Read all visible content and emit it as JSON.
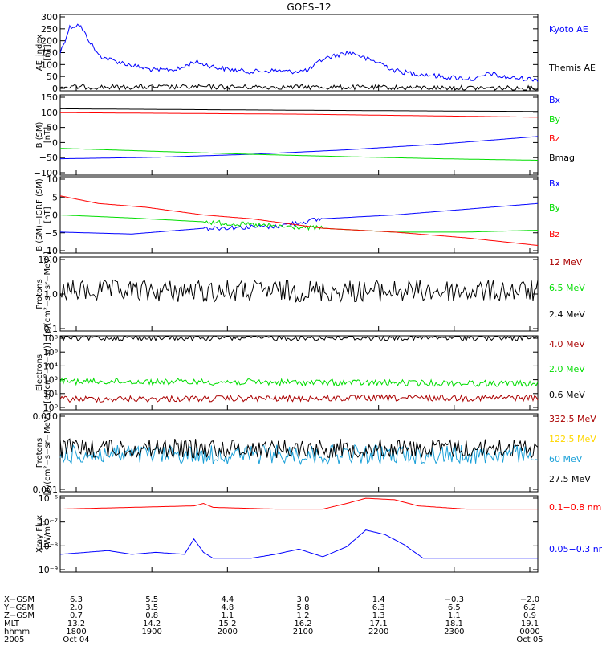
{
  "title": "GOES–12",
  "chart_data": [
    {
      "type": "line",
      "ylabel": "AE_index\n[nT]",
      "yticks": [
        "300",
        "250",
        "200",
        "150",
        "100",
        "50",
        "0"
      ],
      "ylim": [
        0,
        300
      ],
      "scale": "linear",
      "series": [
        {
          "name": "Kyoto AE",
          "color": "#0000ff",
          "points": [
            [
              0,
              150
            ],
            [
              0.02,
              250
            ],
            [
              0.04,
              260
            ],
            [
              0.06,
              200
            ],
            [
              0.08,
              140
            ],
            [
              0.1,
              125
            ],
            [
              0.13,
              110
            ],
            [
              0.16,
              95
            ],
            [
              0.2,
              80
            ],
            [
              0.25,
              85
            ],
            [
              0.28,
              115
            ],
            [
              0.3,
              105
            ],
            [
              0.33,
              90
            ],
            [
              0.37,
              80
            ],
            [
              0.4,
              75
            ],
            [
              0.45,
              80
            ],
            [
              0.48,
              75
            ],
            [
              0.52,
              80
            ],
            [
              0.55,
              125
            ],
            [
              0.58,
              140
            ],
            [
              0.6,
              150
            ],
            [
              0.62,
              145
            ],
            [
              0.64,
              125
            ],
            [
              0.67,
              110
            ],
            [
              0.7,
              80
            ],
            [
              0.73,
              70
            ],
            [
              0.76,
              65
            ],
            [
              0.8,
              55
            ],
            [
              0.84,
              50
            ],
            [
              0.87,
              45
            ],
            [
              0.9,
              70
            ],
            [
              0.92,
              55
            ],
            [
              0.95,
              50
            ],
            [
              1,
              45
            ]
          ]
        },
        {
          "name": "Themis AE",
          "color": "#000000",
          "points": [
            [
              0,
              15
            ],
            [
              0.5,
              15
            ],
            [
              1,
              10
            ]
          ]
        }
      ]
    },
    {
      "type": "line",
      "ylabel": "B (SM)\n[nT]",
      "yticks": [
        "150",
        "100",
        "50",
        "0",
        "−50",
        "−100"
      ],
      "ylim": [
        -110,
        160
      ],
      "scale": "linear",
      "series": [
        {
          "name": "Bx",
          "color": "#0000ff",
          "points": [
            [
              0,
              -55
            ],
            [
              0.2,
              -50
            ],
            [
              0.4,
              -40
            ],
            [
              0.6,
              -25
            ],
            [
              0.8,
              -5
            ],
            [
              1,
              20
            ]
          ]
        },
        {
          "name": "By",
          "color": "#00dd00",
          "points": [
            [
              0,
              -20
            ],
            [
              0.2,
              -30
            ],
            [
              0.4,
              -40
            ],
            [
              0.6,
              -48
            ],
            [
              0.8,
              -55
            ],
            [
              1,
              -60
            ]
          ]
        },
        {
          "name": "Bz",
          "color": "#ff0000",
          "points": [
            [
              0,
              100
            ],
            [
              0.5,
              95
            ],
            [
              1,
              85
            ]
          ]
        },
        {
          "name": "Bmag",
          "color": "#000000",
          "points": [
            [
              0,
              113
            ],
            [
              0.5,
              108
            ],
            [
              1,
              104
            ]
          ]
        }
      ]
    },
    {
      "type": "line",
      "ylabel": "B (SM)−IGRF (SM)\n[nT]",
      "yticks": [
        "10",
        "5",
        "0",
        "−5",
        "−10"
      ],
      "ylim": [
        -10,
        10
      ],
      "scale": "linear",
      "series": [
        {
          "name": "Bx",
          "color": "#0000ff",
          "points": [
            [
              0,
              -4.5
            ],
            [
              0.15,
              -5
            ],
            [
              0.3,
              -3.5
            ],
            [
              0.45,
              -3
            ],
            [
              0.55,
              -1
            ],
            [
              0.7,
              0
            ],
            [
              0.85,
              1.5
            ],
            [
              1,
              3
            ]
          ]
        },
        {
          "name": "By",
          "color": "#00dd00",
          "points": [
            [
              0,
              0
            ],
            [
              0.15,
              -0.8
            ],
            [
              0.3,
              -1.8
            ],
            [
              0.45,
              -3
            ],
            [
              0.55,
              -3.5
            ],
            [
              0.7,
              -4.5
            ],
            [
              0.85,
              -4.5
            ],
            [
              1,
              -4
            ]
          ]
        },
        {
          "name": "Bz",
          "color": "#ff0000",
          "points": [
            [
              0,
              5
            ],
            [
              0.08,
              3
            ],
            [
              0.18,
              2
            ],
            [
              0.3,
              0
            ],
            [
              0.4,
              -1
            ],
            [
              0.55,
              -3.5
            ],
            [
              0.7,
              -4.5
            ],
            [
              0.85,
              -6
            ],
            [
              1,
              -8
            ]
          ]
        }
      ]
    },
    {
      "type": "line",
      "ylabel": "Protons\n[p/(cm²−s−sr−MeV)]",
      "yticks": [
        "10.0",
        "1.0",
        "0.1"
      ],
      "ylim": [
        0.1,
        10
      ],
      "scale": "log",
      "series": [
        {
          "name": "12 MeV",
          "color": "#aa0000",
          "points": []
        },
        {
          "name": "6.5 MeV",
          "color": "#00dd00",
          "points": []
        },
        {
          "name": "2.4 MeV",
          "color": "#000000",
          "points": [
            [
              0,
              1.2
            ],
            [
              1,
              1.2
            ]
          ]
        }
      ]
    },
    {
      "type": "line",
      "ylabel": "Electrons\n[e/(cm²−s−sr)]",
      "yticks": [
        "10⁸",
        "10⁶",
        "10⁴",
        "10³",
        "10¹",
        "10⁰"
      ],
      "ylim": [
        1,
        1000000000
      ],
      "scale": "log",
      "series": [
        {
          "name": "4.0 MeV",
          "color": "#aa0000",
          "points": [
            [
              0,
              20
            ],
            [
              1,
              30
            ]
          ]
        },
        {
          "name": "2.0 MeV",
          "color": "#00dd00",
          "points": [
            [
              0,
              3000
            ],
            [
              1,
              1500
            ]
          ]
        },
        {
          "name": "0.6 MeV",
          "color": "#000000",
          "points": [
            [
              0,
              600000000
            ],
            [
              1,
              600000000
            ]
          ]
        }
      ]
    },
    {
      "type": "line",
      "ylabel": "Protons\n[p/(cm²−s−sr−MeV)]",
      "yticks": [
        "0.010",
        "0.001"
      ],
      "ylim": [
        0.001,
        0.1
      ],
      "scale": "log",
      "series": [
        {
          "name": "332.5 MeV",
          "color": "#aa0000",
          "points": []
        },
        {
          "name": "122.5 MeV",
          "color": "#ffd700",
          "points": []
        },
        {
          "name": "60 MeV",
          "color": "#1aa0d8",
          "points": [
            [
              0,
              0.009
            ],
            [
              1,
              0.009
            ]
          ]
        },
        {
          "name": "27.5 MeV",
          "color": "#000000",
          "points": [
            [
              0,
              0.013
            ],
            [
              1,
              0.013
            ]
          ]
        }
      ]
    },
    {
      "type": "line",
      "ylabel": "Xray Flux\n[W/m²]",
      "yticks": [
        "10⁻⁶",
        "10⁻⁷",
        "10⁻⁸",
        "10⁻⁹"
      ],
      "ylim": [
        1e-09,
        1e-06
      ],
      "scale": "log",
      "series": [
        {
          "name": "0.1−0.8 nm",
          "color": "#ff0000",
          "points": [
            [
              0,
              3e-07
            ],
            [
              0.28,
              4e-07
            ],
            [
              0.3,
              5e-07
            ],
            [
              0.32,
              3.5e-07
            ],
            [
              0.45,
              3e-07
            ],
            [
              0.55,
              3e-07
            ],
            [
              0.6,
              5e-07
            ],
            [
              0.64,
              8e-07
            ],
            [
              0.7,
              7e-07
            ],
            [
              0.75,
              4e-07
            ],
            [
              0.85,
              3e-07
            ],
            [
              1,
              3e-07
            ]
          ]
        },
        {
          "name": "0.05−0.3 nm",
          "color": "#0000ff",
          "points": [
            [
              0,
              5e-09
            ],
            [
              0.1,
              7e-09
            ],
            [
              0.15,
              5e-09
            ],
            [
              0.2,
              6e-09
            ],
            [
              0.26,
              5e-09
            ],
            [
              0.28,
              2e-08
            ],
            [
              0.3,
              6e-09
            ],
            [
              0.32,
              3.5e-09
            ],
            [
              0.4,
              3.5e-09
            ],
            [
              0.45,
              5e-09
            ],
            [
              0.5,
              8e-09
            ],
            [
              0.55,
              4e-09
            ],
            [
              0.6,
              1e-08
            ],
            [
              0.64,
              4.5e-08
            ],
            [
              0.68,
              3e-08
            ],
            [
              0.72,
              1.2e-08
            ],
            [
              0.76,
              3.5e-09
            ],
            [
              0.85,
              3.5e-09
            ],
            [
              1,
              3.5e-09
            ]
          ]
        }
      ]
    }
  ],
  "x_axis": {
    "row_labels": [
      "X−GSM",
      "Y−GSM",
      "Z−GSM",
      "MLT",
      "hhmm",
      "2005"
    ],
    "columns": [
      {
        "values": [
          "6.3",
          "2.0",
          "0.7",
          "13.2",
          "1800",
          "Oct 04"
        ]
      },
      {
        "values": [
          "5.5",
          "3.5",
          "0.8",
          "14.2",
          "1900",
          ""
        ]
      },
      {
        "values": [
          "4.4",
          "4.8",
          "1.1",
          "15.2",
          "2000",
          ""
        ]
      },
      {
        "values": [
          "3.0",
          "5.8",
          "1.2",
          "16.2",
          "2100",
          ""
        ]
      },
      {
        "values": [
          "1.4",
          "6.3",
          "1.3",
          "17.1",
          "2200",
          ""
        ]
      },
      {
        "values": [
          "−0.3",
          "6.5",
          "1.1",
          "18.1",
          "2300",
          ""
        ]
      },
      {
        "values": [
          "−2.0",
          "6.2",
          "0.9",
          "19.1",
          "0000",
          "Oct 05"
        ]
      }
    ]
  }
}
